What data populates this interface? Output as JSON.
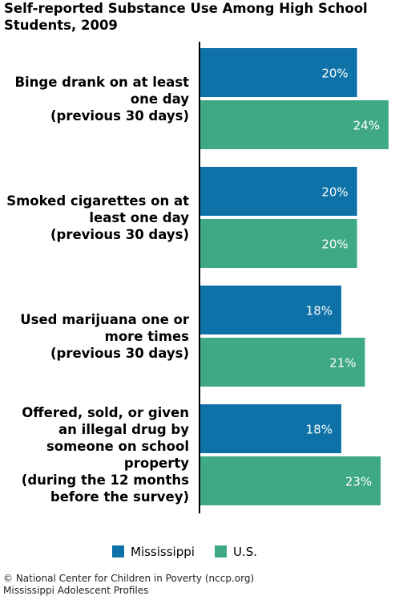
{
  "title": "Self-reported Substance Use Among High School Students, 2009",
  "colors": {
    "mississippi": "#0e72a8",
    "us": "#3fa884",
    "axis": "#000000",
    "value_text": "#ffffff"
  },
  "legend": {
    "mississippi": "Mississippi",
    "us": "U.S."
  },
  "footer": {
    "line1": "© National Center for Children in Poverty (nccp.org)",
    "line2": "Mississippi Adolescent Profiles"
  },
  "chart_data": {
    "type": "bar",
    "orientation": "horizontal",
    "title": "Self-reported Substance Use Among High School Students, 2009",
    "categories": [
      "Binge drank on at least one day (previous 30 days)",
      "Smoked cigarettes on at least one day (previous 30 days)",
      "Used marijuana one or more times (previous 30 days)",
      "Offered, sold, or given an illegal drug by someone on school property (during the 12 months before the survey)"
    ],
    "category_lines": [
      [
        "Binge drank on at least",
        "one day",
        "(previous 30 days)"
      ],
      [
        "Smoked cigarettes on at",
        "least one day",
        "(previous 30 days)"
      ],
      [
        "Used marijuana one or",
        "more times",
        "(previous 30 days)"
      ],
      [
        "Offered, sold, or given",
        "an illegal drug by",
        "someone on school",
        "property",
        "(during the 12 months",
        "before the survey)"
      ]
    ],
    "series": [
      {
        "name": "Mississippi",
        "values": [
          20,
          20,
          18,
          18
        ],
        "labels": [
          "20%",
          "20%",
          "18%",
          "18%"
        ]
      },
      {
        "name": "U.S.",
        "values": [
          24,
          20,
          21,
          23
        ],
        "labels": [
          "24%",
          "20%",
          "21%",
          "23%"
        ]
      }
    ],
    "xlim": [
      0,
      24
    ],
    "legend_position": "bottom",
    "grid": false
  }
}
